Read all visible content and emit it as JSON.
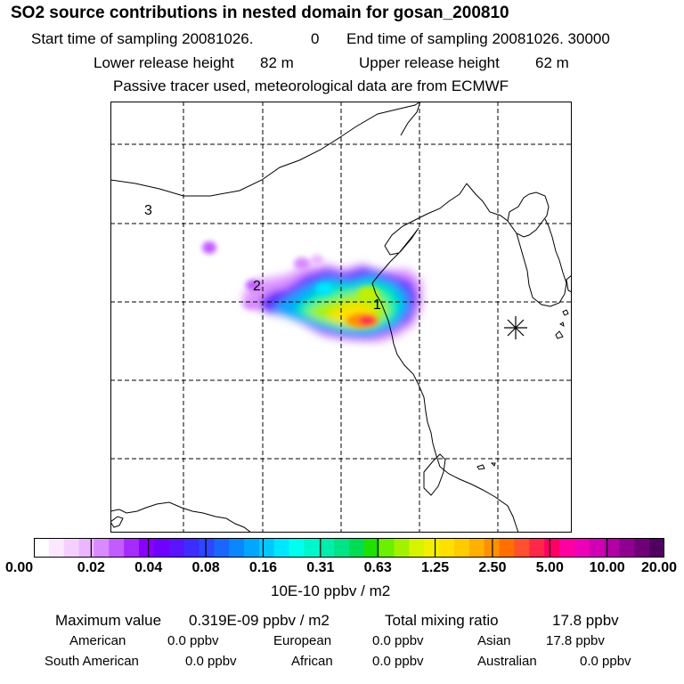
{
  "header": {
    "title": "SO2 source contributions in nested domain for gosan_200810",
    "start_label": "Start time of sampling 20081026.",
    "start_hour": "0",
    "end_label": "End time of sampling 20081026. 30000",
    "lower_label": "Lower release height",
    "lower_value": "82 m",
    "upper_label": "Upper release height",
    "upper_value": "62 m",
    "note": "Passive tracer used, meteorological data are from ECMWF"
  },
  "map": {
    "source_labels": [
      "1",
      "2",
      "3"
    ],
    "receptor_marker": "gosan-receptor"
  },
  "colorbar": {
    "ticks": [
      "0.00",
      "0.02",
      "0.04",
      "0.08",
      "0.16",
      "0.31",
      "0.63",
      "1.25",
      "2.50",
      "5.00",
      "10.00",
      "20.00"
    ],
    "unit": "10E-10 ppbv / m2",
    "colors": [
      "#ffffff",
      "#fbe8ff",
      "#f5d0ff",
      "#eab6ff",
      "#d98aff",
      "#c25cff",
      "#a52bff",
      "#8a00ff",
      "#7000ff",
      "#5a14ff",
      "#3f2cff",
      "#2d46ff",
      "#1a66ff",
      "#0a86ff",
      "#00a6ff",
      "#00c8ff",
      "#00e6ff",
      "#00ffee",
      "#00f7cc",
      "#00eeaa",
      "#00e488",
      "#00dd55",
      "#20e000",
      "#6af000",
      "#a2f200",
      "#d6f400",
      "#f2f000",
      "#ffe000",
      "#ffcc00",
      "#ffb000",
      "#ff9000",
      "#ff7000",
      "#ff5030",
      "#ff2848",
      "#ff0066",
      "#ff00a0",
      "#ee00b8",
      "#d200b4",
      "#b000a6",
      "#900090",
      "#700078",
      "#500060"
    ]
  },
  "stats": {
    "max_label": "Maximum value",
    "max_value": "0.319E-09 ppbv / m2",
    "total_label": "Total mixing ratio",
    "total_value": "17.8 ppbv",
    "regions": [
      {
        "name": "American",
        "value": "0.0 ppbv"
      },
      {
        "name": "European",
        "value": "0.0 ppbv"
      },
      {
        "name": "Asian",
        "value": "17.8 ppbv"
      },
      {
        "name": "South American",
        "value": "0.0 ppbv"
      },
      {
        "name": "African",
        "value": "0.0 ppbv"
      },
      {
        "name": "Australian",
        "value": "0.0 ppbv"
      }
    ]
  }
}
